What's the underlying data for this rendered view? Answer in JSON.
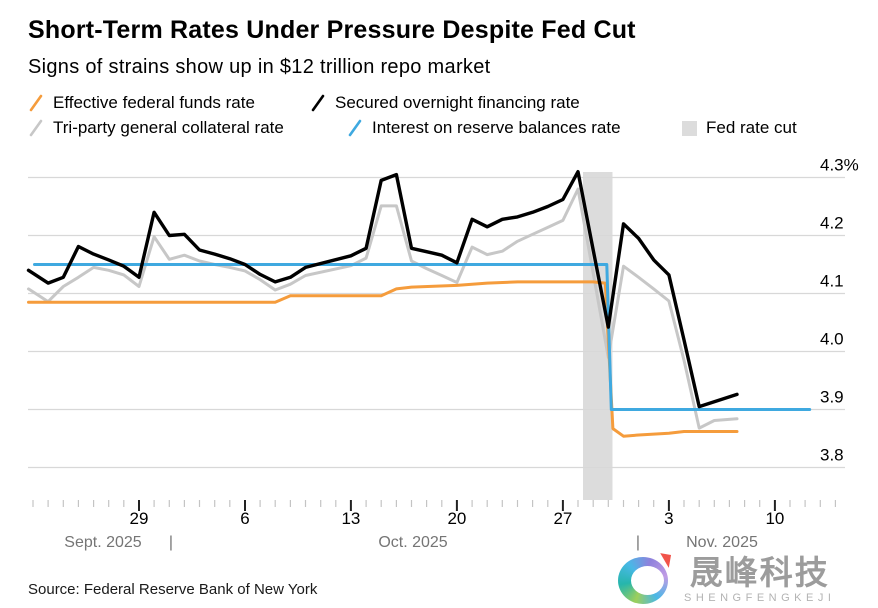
{
  "header": {
    "title": "Short-Term Rates Under Pressure Despite Fed Cut",
    "subtitle": "Signs of strains show up in $12 trillion repo market"
  },
  "legend": {
    "items": [
      {
        "label": "Effective federal funds rate",
        "color": "#f59c3c",
        "type": "slash"
      },
      {
        "label": "Secured overnight financing rate",
        "color": "#000000",
        "type": "slash"
      },
      {
        "label": "Tri-party general collateral rate",
        "color": "#c7c7c7",
        "type": "slash"
      },
      {
        "label": "Interest on reserve balances rate",
        "color": "#3fa9e0",
        "type": "slash"
      },
      {
        "label": "Fed rate cut",
        "color": "#dcdcdc",
        "type": "square"
      }
    ]
  },
  "chart_data": {
    "type": "line",
    "title": "Short-Term Rates Under Pressure Despite Fed Cut",
    "x_unit": "days since 2025-09-22",
    "grid": true,
    "legend_position": "top",
    "y_axis": {
      "range": [
        3.74,
        4.33
      ],
      "ticks": [
        {
          "value": 4.3,
          "label": "4.3%"
        },
        {
          "value": 4.2,
          "label": "4.2"
        },
        {
          "value": 4.1,
          "label": "4.1"
        },
        {
          "value": 4.0,
          "label": "4.0"
        },
        {
          "value": 3.9,
          "label": "3.9"
        },
        {
          "value": 3.8,
          "label": "3.8"
        }
      ]
    },
    "x_axis": {
      "minor_tick_day_range": [
        0,
        53
      ],
      "minor_tick_step_days": 1,
      "major_ticks": [
        {
          "day": 7,
          "label": "29"
        },
        {
          "day": 14,
          "label": "6"
        },
        {
          "day": 21,
          "label": "13"
        },
        {
          "day": 28,
          "label": "20"
        },
        {
          "day": 35,
          "label": "27"
        },
        {
          "day": 42,
          "label": "3"
        },
        {
          "day": 49,
          "label": "10"
        }
      ],
      "month_labels": [
        {
          "x": 103,
          "label": "Sept. 2025"
        },
        {
          "x": 171,
          "label": "|"
        },
        {
          "x": 413,
          "label": "Oct. 2025"
        },
        {
          "x": 638,
          "label": "|"
        },
        {
          "x": 722,
          "label": "Nov. 2025"
        }
      ]
    },
    "fed_rate_cut_band": {
      "start_day": 36.33,
      "end_day": 38.28,
      "color": "#dcdcdc",
      "label": "Fed rate cut"
    },
    "series": [
      {
        "id": "tgcr",
        "name": "Tri-party general collateral rate",
        "color": "#c7c7c7",
        "width": 3,
        "points": [
          [
            -0.3,
            4.108
          ],
          [
            1,
            4.086
          ],
          [
            2,
            4.112
          ],
          [
            3,
            4.128
          ],
          [
            4,
            4.145
          ],
          [
            5,
            4.14
          ],
          [
            6,
            4.132
          ],
          [
            7,
            4.112
          ],
          [
            8,
            4.198
          ],
          [
            9,
            4.159
          ],
          [
            10,
            4.166
          ],
          [
            11,
            4.156
          ],
          [
            12,
            4.15
          ],
          [
            13,
            4.145
          ],
          [
            14,
            4.139
          ],
          [
            15,
            4.124
          ],
          [
            16,
            4.106
          ],
          [
            17,
            4.116
          ],
          [
            18,
            4.131
          ],
          [
            21,
            4.148
          ],
          [
            22,
            4.161
          ],
          [
            23,
            4.251
          ],
          [
            24,
            4.251
          ],
          [
            25,
            4.156
          ],
          [
            26,
            4.143
          ],
          [
            27,
            4.131
          ],
          [
            28,
            4.119
          ],
          [
            29,
            4.18
          ],
          [
            30,
            4.167
          ],
          [
            31,
            4.173
          ],
          [
            32,
            4.19
          ],
          [
            33,
            4.202
          ],
          [
            34,
            4.214
          ],
          [
            35,
            4.226
          ],
          [
            36,
            4.28
          ],
          [
            37,
            4.135
          ],
          [
            38,
            3.99
          ],
          [
            39,
            4.147
          ],
          [
            40,
            4.128
          ],
          [
            41,
            4.108
          ],
          [
            42,
            4.087
          ],
          [
            43,
            3.985
          ],
          [
            44,
            3.868
          ],
          [
            45,
            3.881
          ],
          [
            46.5,
            3.884
          ]
        ]
      },
      {
        "id": "effr",
        "name": "Effective federal funds rate",
        "color": "#f59c3c",
        "width": 3,
        "points": [
          [
            -0.3,
            4.085
          ],
          [
            16,
            4.085
          ],
          [
            17,
            4.096
          ],
          [
            23,
            4.096
          ],
          [
            24,
            4.108
          ],
          [
            25,
            4.111
          ],
          [
            28,
            4.114
          ],
          [
            30,
            4.118
          ],
          [
            32,
            4.12
          ],
          [
            37,
            4.12
          ],
          [
            37.8,
            4.118
          ],
          [
            38.3,
            3.867
          ],
          [
            39,
            3.854
          ],
          [
            40,
            3.856
          ],
          [
            42,
            3.859
          ],
          [
            43,
            3.862
          ],
          [
            46.5,
            3.862
          ]
        ]
      },
      {
        "id": "iorb",
        "name": "Interest on reserve balances rate",
        "color": "#3fa9e0",
        "width": 3,
        "points": [
          [
            0.1,
            4.15
          ],
          [
            37.9,
            4.15
          ],
          [
            38.2,
            3.9
          ],
          [
            51.3,
            3.9
          ]
        ]
      },
      {
        "id": "sofr",
        "name": "Secured overnight financing rate",
        "color": "#000000",
        "width": 3.4,
        "points": [
          [
            -0.3,
            4.14
          ],
          [
            1,
            4.118
          ],
          [
            2,
            4.128
          ],
          [
            3,
            4.181
          ],
          [
            4,
            4.168
          ],
          [
            5,
            4.158
          ],
          [
            6,
            4.147
          ],
          [
            7,
            4.128
          ],
          [
            8,
            4.24
          ],
          [
            9,
            4.2
          ],
          [
            10,
            4.202
          ],
          [
            11,
            4.175
          ],
          [
            12,
            4.168
          ],
          [
            13,
            4.16
          ],
          [
            14,
            4.15
          ],
          [
            15,
            4.133
          ],
          [
            16,
            4.12
          ],
          [
            17,
            4.128
          ],
          [
            18,
            4.145
          ],
          [
            21,
            4.165
          ],
          [
            22,
            4.178
          ],
          [
            23,
            4.295
          ],
          [
            24,
            4.305
          ],
          [
            25,
            4.178
          ],
          [
            26,
            4.172
          ],
          [
            27,
            4.166
          ],
          [
            28,
            4.153
          ],
          [
            29,
            4.228
          ],
          [
            30,
            4.215
          ],
          [
            31,
            4.228
          ],
          [
            32,
            4.232
          ],
          [
            33,
            4.24
          ],
          [
            34,
            4.25
          ],
          [
            35,
            4.262
          ],
          [
            36,
            4.31
          ],
          [
            37,
            4.175
          ],
          [
            38,
            4.042
          ],
          [
            39,
            4.22
          ],
          [
            40,
            4.195
          ],
          [
            41,
            4.158
          ],
          [
            42,
            4.132
          ],
          [
            43,
            4.02
          ],
          [
            44,
            3.905
          ],
          [
            46.5,
            3.926
          ]
        ]
      }
    ]
  },
  "footer": {
    "source": "Source: Federal Reserve Bank of New York"
  },
  "watermark": {
    "cn": "晟峰科技",
    "en": "SHENGFENGKEJI"
  }
}
